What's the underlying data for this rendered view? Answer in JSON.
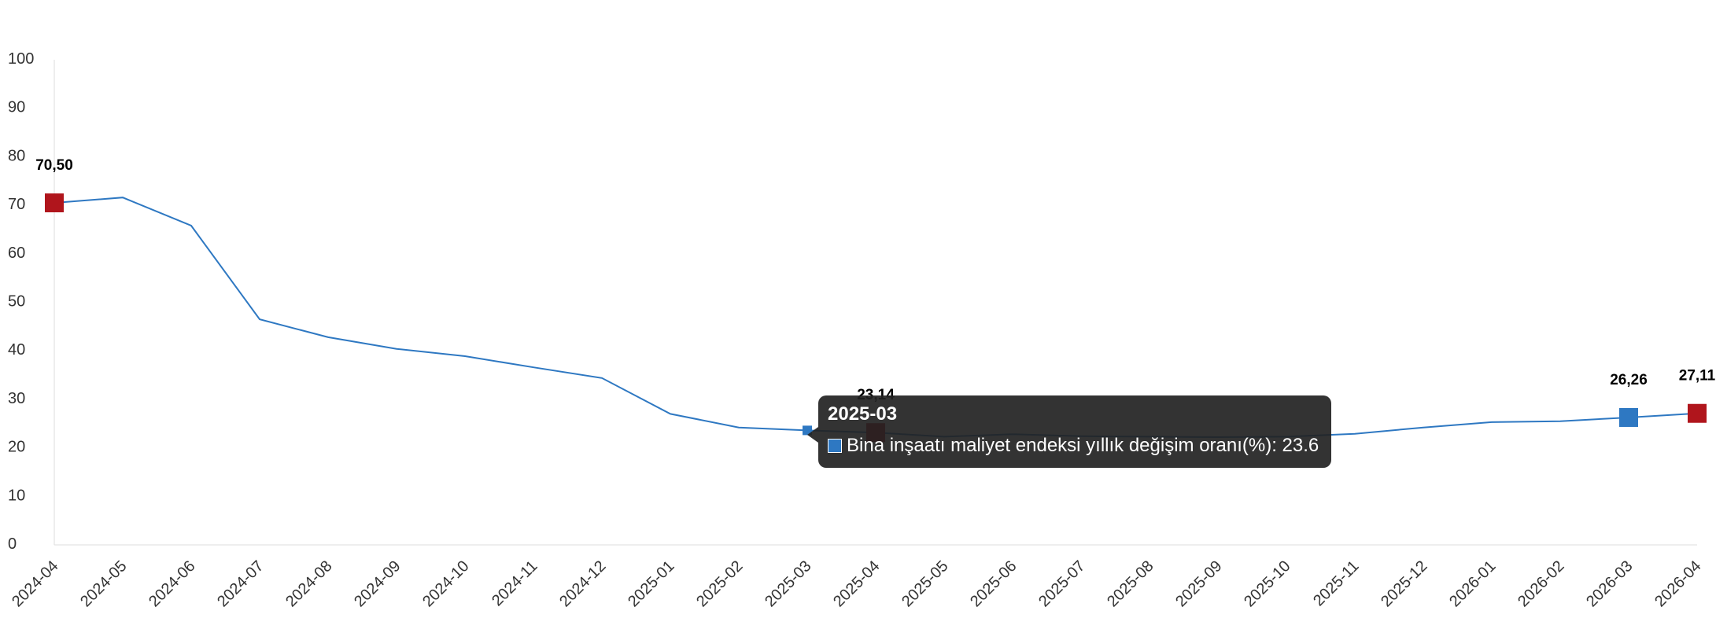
{
  "chart_data": {
    "type": "line",
    "title": "",
    "xlabel": "",
    "ylabel": "",
    "ylim": [
      0,
      100
    ],
    "yticks": [
      "0",
      "10",
      "20",
      "30",
      "40",
      "50",
      "60",
      "70",
      "80",
      "90",
      "100"
    ],
    "categories": [
      "2024-04",
      "2024-05",
      "2024-06",
      "2024-07",
      "2024-08",
      "2024-09",
      "2024-10",
      "2024-11",
      "2024-12",
      "2025-01",
      "2025-02",
      "2025-03",
      "2025-04",
      "2025-05",
      "2025-06",
      "2025-07",
      "2025-08",
      "2025-09",
      "2025-10",
      "2025-11",
      "2025-12",
      "2026-01",
      "2026-02",
      "2026-03",
      "2026-04"
    ],
    "series": [
      {
        "name": "Bina inşaatı maliyet endeksi yıllık değişim oranı(%)",
        "color": "#2e78c2",
        "values": [
          70.5,
          71.6,
          65.8,
          46.5,
          42.8,
          40.4,
          38.9,
          36.6,
          34.4,
          27.0,
          24.2,
          23.6,
          23.14,
          22.3,
          22.8,
          22.4,
          22.3,
          22.2,
          22.3,
          22.9,
          24.2,
          25.3,
          25.5,
          26.26,
          27.11
        ]
      }
    ],
    "markers": [
      {
        "index": 0,
        "label": "70,50",
        "color": "#b0151c"
      },
      {
        "index": 12,
        "label": "23,14",
        "color": "#b0151c"
      },
      {
        "index": 23,
        "label": "26,26",
        "color": "#2e78c2"
      },
      {
        "index": 24,
        "label": "27,11",
        "color": "#b0151c"
      }
    ],
    "grid": false,
    "legend": "none"
  },
  "tooltip": {
    "title": "2025-03",
    "series_label": "Bina inşaatı maliyet endeksi yıllık değişim oranı(%)",
    "value": "23.6",
    "text": "Bina inşaatı maliyet endeksi yıllık değişim oranı(%): 23.6",
    "swatch_color": "#2e78c2",
    "active_index": 11
  }
}
